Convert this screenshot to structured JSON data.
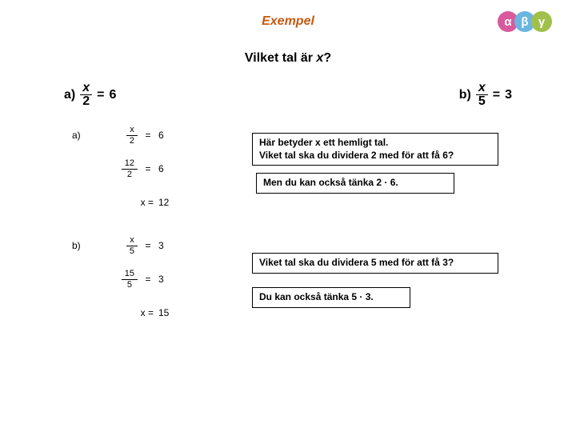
{
  "title": "Exempel",
  "subtitle_prefix": "Vilket tal är ",
  "subtitle_var": "x",
  "subtitle_suffix": "?",
  "problem_a": {
    "label": "a)",
    "num": "x",
    "den": "2",
    "eq": "=",
    "rhs": "6"
  },
  "problem_b": {
    "label": "b)",
    "num": "x",
    "den": "5",
    "eq": "=",
    "rhs": "3"
  },
  "work": [
    {
      "label": "a)",
      "type": "frac",
      "num": "x",
      "den": "2",
      "eq": "=",
      "rhs": "6"
    },
    {
      "label": "",
      "type": "frac",
      "num": "12",
      "den": "2",
      "eq": "=",
      "rhs": "6"
    },
    {
      "label": "",
      "type": "plain",
      "lhs": "x =",
      "rhs": "12"
    },
    {
      "label": "b)",
      "type": "frac",
      "num": "x",
      "den": "5",
      "eq": "=",
      "rhs": "3"
    },
    {
      "label": "",
      "type": "frac",
      "num": "15",
      "den": "5",
      "eq": "=",
      "rhs": "3"
    },
    {
      "label": "",
      "type": "plain",
      "lhs": "x =",
      "rhs": "15"
    }
  ],
  "callouts": {
    "c1a": "Här betyder x ett hemligt tal.",
    "c1b": "Viket tal ska du dividera 2 med för att få 6?",
    "c2": "Men du kan också tänka 2 · 6.",
    "c3": "Viket tal ska du dividera 5 med för att få 3?",
    "c4": "Du kan också tänka 5 · 3."
  },
  "logo": {
    "a": "α",
    "b": "β",
    "g": "γ"
  },
  "colors": {
    "title": "#c55a11",
    "border": "#000000",
    "bg": "#ffffff",
    "logo1": "#d85a9c",
    "logo2": "#6bb5e0",
    "logo3": "#a0c04a"
  }
}
